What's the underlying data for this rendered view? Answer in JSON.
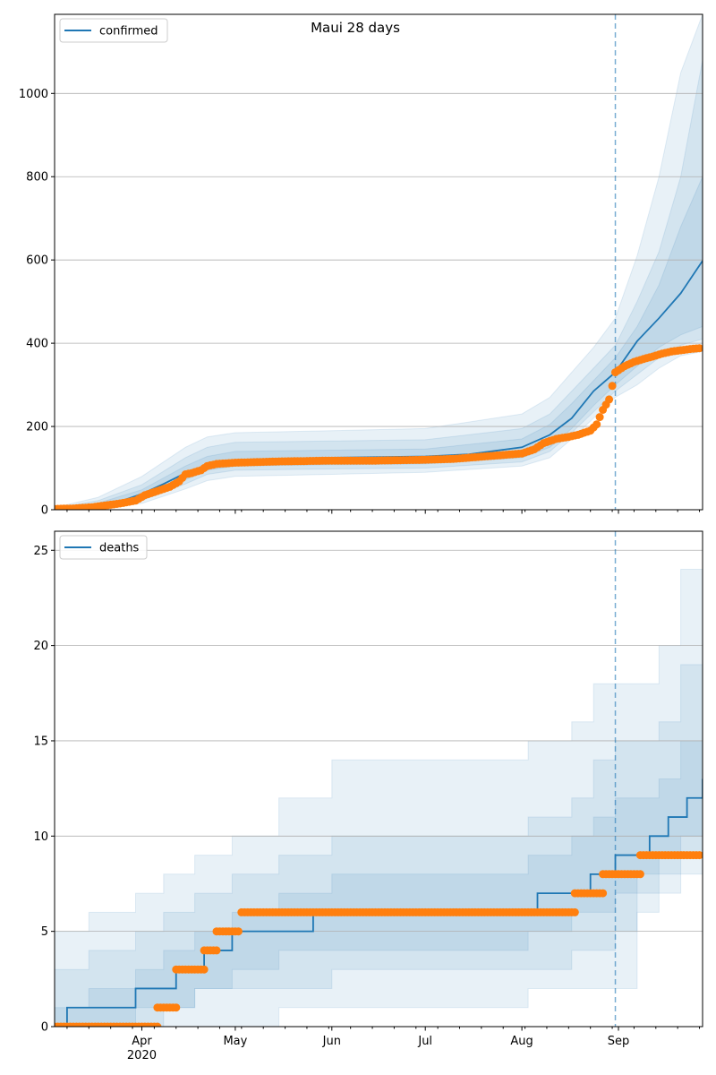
{
  "title": "Maui 28 days",
  "colors": {
    "model": "#1f77b4",
    "observed": "#ff7f0e",
    "grid": "#b0b0b0",
    "band": "#1f77b4"
  },
  "x_axis": {
    "start": "2020-03-04",
    "end": "2020-09-28",
    "cutoff": "2020-08-31",
    "ticks": [
      {
        "date": "2020-04-01",
        "label": "Apr",
        "sublabel": "2020"
      },
      {
        "date": "2020-05-01",
        "label": "May",
        "sublabel": ""
      },
      {
        "date": "2020-06-01",
        "label": "Jun",
        "sublabel": ""
      },
      {
        "date": "2020-07-01",
        "label": "Jul",
        "sublabel": ""
      },
      {
        "date": "2020-08-01",
        "label": "Aug",
        "sublabel": ""
      },
      {
        "date": "2020-09-01",
        "label": "Sep",
        "sublabel": ""
      }
    ]
  },
  "chart_data": [
    {
      "type": "line",
      "legend": "confirmed",
      "legend_position": "top-left",
      "grid": "y",
      "ylim": [
        0,
        1190
      ],
      "yticks": [
        0,
        200,
        400,
        600,
        800,
        1000
      ],
      "model": {
        "name": "confirmed",
        "x": [
          "2020-03-04",
          "2020-03-18",
          "2020-03-25",
          "2020-04-01",
          "2020-04-08",
          "2020-04-15",
          "2020-04-22",
          "2020-05-01",
          "2020-06-01",
          "2020-07-01",
          "2020-07-15",
          "2020-08-01",
          "2020-08-10",
          "2020-08-17",
          "2020-08-24",
          "2020-08-31",
          "2020-09-07",
          "2020-09-14",
          "2020-09-21",
          "2020-09-28"
        ],
        "y": [
          0,
          10,
          20,
          38,
          62,
          88,
          108,
          118,
          125,
          128,
          133,
          150,
          180,
          220,
          285,
          330,
          405,
          460,
          520,
          598
        ]
      },
      "bands": [
        {
          "x": [
            "2020-03-04",
            "2020-03-18",
            "2020-04-01",
            "2020-04-15",
            "2020-04-22",
            "2020-05-01",
            "2020-06-01",
            "2020-07-01",
            "2020-08-01",
            "2020-08-10",
            "2020-08-17",
            "2020-08-24",
            "2020-08-31",
            "2020-09-07",
            "2020-09-14",
            "2020-09-21",
            "2020-09-28"
          ],
          "lo": [
            0,
            2,
            15,
            50,
            70,
            80,
            85,
            90,
            105,
            125,
            170,
            220,
            270,
            300,
            340,
            370,
            380
          ],
          "hi": [
            5,
            30,
            80,
            150,
            175,
            185,
            190,
            195,
            230,
            270,
            330,
            390,
            460,
            610,
            800,
            1050,
            1190
          ]
        },
        {
          "x": [
            "2020-03-04",
            "2020-03-18",
            "2020-04-01",
            "2020-04-15",
            "2020-04-22",
            "2020-05-01",
            "2020-06-01",
            "2020-07-01",
            "2020-08-01",
            "2020-08-10",
            "2020-08-17",
            "2020-08-24",
            "2020-08-31",
            "2020-09-07",
            "2020-09-14",
            "2020-09-21",
            "2020-09-28"
          ],
          "lo": [
            0,
            4,
            22,
            62,
            85,
            95,
            98,
            100,
            115,
            140,
            185,
            235,
            285,
            325,
            365,
            395,
            410
          ],
          "hi": [
            3,
            22,
            60,
            125,
            150,
            162,
            165,
            168,
            195,
            230,
            285,
            340,
            395,
            500,
            620,
            800,
            1080
          ]
        },
        {
          "x": [
            "2020-03-04",
            "2020-03-18",
            "2020-04-01",
            "2020-04-15",
            "2020-04-22",
            "2020-05-01",
            "2020-06-01",
            "2020-07-01",
            "2020-08-01",
            "2020-08-10",
            "2020-08-17",
            "2020-08-24",
            "2020-08-31",
            "2020-09-07",
            "2020-09-14",
            "2020-09-21",
            "2020-09-28"
          ],
          "lo": [
            0,
            6,
            28,
            72,
            95,
            105,
            108,
            110,
            125,
            150,
            195,
            250,
            300,
            345,
            390,
            420,
            440
          ],
          "hi": [
            2,
            16,
            48,
            105,
            128,
            140,
            143,
            146,
            170,
            205,
            255,
            310,
            365,
            440,
            540,
            680,
            800
          ]
        }
      ],
      "observed": {
        "name": "observed",
        "x": [
          "2020-03-04",
          "2020-03-10",
          "2020-03-16",
          "2020-03-20",
          "2020-03-25",
          "2020-03-30",
          "2020-04-02",
          "2020-04-06",
          "2020-04-10",
          "2020-04-13",
          "2020-04-15",
          "2020-04-17",
          "2020-04-20",
          "2020-04-22",
          "2020-04-25",
          "2020-05-01",
          "2020-05-15",
          "2020-06-01",
          "2020-06-15",
          "2020-07-01",
          "2020-07-10",
          "2020-07-20",
          "2020-08-01",
          "2020-08-05",
          "2020-08-08",
          "2020-08-12",
          "2020-08-16",
          "2020-08-19",
          "2020-08-21",
          "2020-08-23",
          "2020-08-25",
          "2020-08-27",
          "2020-08-29",
          "2020-08-31",
          "2020-09-03",
          "2020-09-06",
          "2020-09-09",
          "2020-09-12",
          "2020-09-15",
          "2020-09-18",
          "2020-09-21",
          "2020-09-24",
          "2020-09-27"
        ],
        "y": [
          2,
          3,
          6,
          10,
          15,
          22,
          35,
          45,
          55,
          68,
          85,
          88,
          95,
          105,
          110,
          113,
          116,
          118,
          118,
          120,
          122,
          128,
          135,
          145,
          160,
          170,
          175,
          180,
          185,
          190,
          205,
          240,
          265,
          330,
          345,
          355,
          362,
          368,
          375,
          380,
          383,
          386,
          388
        ]
      }
    },
    {
      "type": "step",
      "legend": "deaths",
      "legend_position": "top-left",
      "grid": "y",
      "ylim": [
        0,
        26
      ],
      "yticks": [
        0,
        5,
        10,
        15,
        20,
        25
      ],
      "model": {
        "name": "deaths",
        "x": [
          "2020-03-04",
          "2020-03-08",
          "2020-03-30",
          "2020-04-12",
          "2020-04-21",
          "2020-04-30",
          "2020-05-26",
          "2020-08-06",
          "2020-08-23",
          "2020-08-31",
          "2020-09-04",
          "2020-09-11",
          "2020-09-17",
          "2020-09-23",
          "2020-09-28"
        ],
        "y": [
          0,
          1,
          2,
          3,
          4,
          5,
          6,
          7,
          8,
          9,
          9,
          10,
          11,
          12,
          13
        ]
      },
      "bands": [
        {
          "x": [
            "2020-03-04",
            "2020-03-15",
            "2020-03-30",
            "2020-04-08",
            "2020-04-18",
            "2020-04-30",
            "2020-05-15",
            "2020-06-01",
            "2020-08-03",
            "2020-08-17",
            "2020-08-24",
            "2020-08-31",
            "2020-09-07",
            "2020-09-14",
            "2020-09-21",
            "2020-09-28"
          ],
          "lo": [
            0,
            0,
            0,
            0,
            0,
            0,
            1,
            1,
            2,
            2,
            2,
            2,
            6,
            7,
            8,
            8
          ],
          "hi": [
            5,
            6,
            7,
            8,
            9,
            10,
            12,
            14,
            15,
            16,
            18,
            18,
            18,
            20,
            24,
            26
          ]
        },
        {
          "x": [
            "2020-03-04",
            "2020-03-15",
            "2020-03-30",
            "2020-04-08",
            "2020-04-18",
            "2020-04-30",
            "2020-05-15",
            "2020-06-01",
            "2020-08-03",
            "2020-08-17",
            "2020-08-24",
            "2020-08-31",
            "2020-09-07",
            "2020-09-14",
            "2020-09-21",
            "2020-09-28"
          ],
          "lo": [
            0,
            0,
            0,
            1,
            2,
            2,
            2,
            3,
            3,
            4,
            4,
            5,
            7,
            8,
            9,
            9
          ],
          "hi": [
            3,
            4,
            5,
            6,
            7,
            8,
            9,
            10,
            11,
            12,
            14,
            15,
            15,
            16,
            19,
            21
          ]
        },
        {
          "x": [
            "2020-03-04",
            "2020-03-15",
            "2020-03-30",
            "2020-04-08",
            "2020-04-18",
            "2020-04-30",
            "2020-05-15",
            "2020-06-01",
            "2020-08-03",
            "2020-08-17",
            "2020-08-24",
            "2020-08-31",
            "2020-09-07",
            "2020-09-14",
            "2020-09-21",
            "2020-09-28"
          ],
          "lo": [
            0,
            0,
            1,
            1,
            2,
            3,
            4,
            4,
            5,
            6,
            6,
            7,
            8,
            9,
            10,
            10
          ],
          "hi": [
            1,
            2,
            3,
            4,
            5,
            6,
            7,
            8,
            9,
            10,
            11,
            12,
            12,
            13,
            15,
            16
          ]
        }
      ],
      "observed": {
        "name": "observed",
        "segments": [
          {
            "start": "2020-03-04",
            "end": "2020-04-06",
            "y": 0
          },
          {
            "start": "2020-04-06",
            "end": "2020-04-12",
            "y": 1
          },
          {
            "start": "2020-04-12",
            "end": "2020-04-21",
            "y": 3
          },
          {
            "start": "2020-04-21",
            "end": "2020-04-25",
            "y": 4
          },
          {
            "start": "2020-04-25",
            "end": "2020-05-02",
            "y": 5
          },
          {
            "start": "2020-05-03",
            "end": "2020-08-18",
            "y": 6
          },
          {
            "start": "2020-08-18",
            "end": "2020-08-27",
            "y": 7
          },
          {
            "start": "2020-08-27",
            "end": "2020-09-08",
            "y": 8
          },
          {
            "start": "2020-09-08",
            "end": "2020-09-27",
            "y": 9
          }
        ]
      }
    }
  ]
}
